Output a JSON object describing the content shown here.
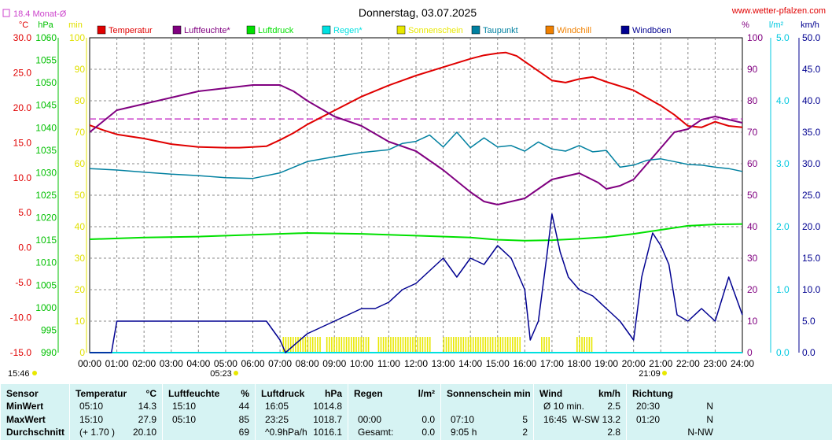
{
  "header": {
    "title": "Donnerstag, 03.07.2025",
    "site": "www.wetter-pfalzen.com",
    "monthly_avg_label": "18.4 Monat-Ø",
    "sunrise": "05:23",
    "sunset": "21:09",
    "current_time": "15:46"
  },
  "colors": {
    "temperature": "#e00000",
    "humidity": "#800080",
    "pressure": "#00e000",
    "rain": "#00e0e0",
    "sunshine": "#e8e800",
    "dewpoint": "#0080a0",
    "windchill": "#f08000",
    "gust": "#000090",
    "monthly_avg": "#cc44cc"
  },
  "chart_data": {
    "type": "line",
    "title": "Donnerstag, 03.07.2025",
    "x_ticks": [
      "00:00",
      "01:00",
      "02:00",
      "03:00",
      "04:00",
      "05:00",
      "06:00",
      "07:00",
      "08:00",
      "09:00",
      "10:00",
      "11:00",
      "12:00",
      "13:00",
      "14:00",
      "15:00",
      "16:00",
      "17:00",
      "18:00",
      "19:00",
      "20:00",
      "21:00",
      "22:00",
      "23:00",
      "24:00"
    ],
    "axes": [
      {
        "unit": "°C",
        "ticks": [
          "30.0",
          "25.0",
          "20.0",
          "15.0",
          "10.0",
          "5.0",
          "0.0",
          "-5.0",
          "-10.0",
          "-15.0"
        ],
        "range": [
          -15,
          30
        ]
      },
      {
        "unit": "hPa",
        "ticks": [
          "1060",
          "1055",
          "1050",
          "1045",
          "1040",
          "1035",
          "1030",
          "1025",
          "1020",
          "1015",
          "1010",
          "1005",
          "1000",
          "995",
          "990"
        ],
        "range": [
          990,
          1060
        ]
      },
      {
        "unit": "min",
        "ticks": [
          "100",
          "90",
          "80",
          "70",
          "60",
          "50",
          "40",
          "30",
          "20",
          "10",
          "0"
        ],
        "range": [
          0,
          100
        ]
      },
      {
        "unit": "%",
        "ticks": [
          "100",
          "90",
          "80",
          "70",
          "60",
          "50",
          "40",
          "30",
          "20",
          "10",
          "0"
        ],
        "range": [
          0,
          100
        ]
      },
      {
        "unit": "l/m²",
        "ticks": [
          "5.0",
          "4.0",
          "3.0",
          "2.0",
          "1.0",
          "0.0"
        ],
        "range": [
          0,
          5
        ]
      },
      {
        "unit": "km/h",
        "ticks": [
          "50.0",
          "45.0",
          "40.0",
          "35.0",
          "30.0",
          "25.0",
          "20.0",
          "15.0",
          "10.0",
          "5.0",
          "0.0"
        ],
        "range": [
          0,
          50
        ]
      }
    ],
    "legend": [
      {
        "name": "Temperatur",
        "key": "temperature"
      },
      {
        "name": "Luftfeuchte*",
        "key": "humidity"
      },
      {
        "name": "Luftdruck",
        "key": "pressure"
      },
      {
        "name": "Regen*",
        "key": "rain"
      },
      {
        "name": "Sonnenschein",
        "key": "sunshine"
      },
      {
        "name": "Taupunkt",
        "key": "dewpoint"
      },
      {
        "name": "Windchill",
        "key": "windchill"
      },
      {
        "name": "Windböen",
        "key": "gust"
      }
    ],
    "monthly_avg_temp": 18.4,
    "series": [
      {
        "name": "Temperatur",
        "key": "temperature",
        "axis": "°C",
        "x": [
          0,
          0.5,
          1,
          2,
          3,
          4,
          5,
          5.5,
          6,
          6.5,
          7,
          7.5,
          8,
          9,
          10,
          11,
          12,
          13,
          14,
          14.5,
          15,
          15.3,
          15.7,
          16,
          17,
          17.5,
          18,
          18.5,
          19,
          20,
          21,
          21.5,
          22,
          22.5,
          23,
          23.5,
          24
        ],
        "y": [
          17.5,
          16.8,
          16.2,
          15.6,
          14.8,
          14.4,
          14.3,
          14.3,
          14.4,
          14.5,
          15.4,
          16.4,
          17.6,
          19.6,
          21.6,
          23.2,
          24.6,
          25.8,
          27.0,
          27.5,
          27.8,
          27.9,
          27.4,
          26.6,
          23.9,
          23.6,
          24.1,
          24.4,
          23.7,
          22.5,
          20.3,
          19.0,
          17.4,
          17.2,
          18.0,
          17.4,
          17.2
        ]
      },
      {
        "name": "Luftfeuchte*",
        "key": "humidity",
        "axis": "%",
        "x": [
          0,
          1,
          2,
          3,
          4,
          5,
          6,
          7,
          7.5,
          8,
          9,
          10,
          11,
          12,
          13,
          14,
          14.5,
          15,
          15.5,
          16,
          17,
          18,
          18.7,
          19,
          19.5,
          20,
          21,
          21.5,
          22,
          22.5,
          23,
          23.5,
          24
        ],
        "y": [
          70,
          77,
          79,
          81,
          83,
          84,
          85,
          85,
          83,
          80,
          75,
          72,
          67,
          64,
          58,
          51,
          48,
          47,
          48,
          49,
          55,
          57,
          54,
          52,
          53,
          55,
          65,
          70,
          71,
          74,
          75,
          74,
          73
        ]
      },
      {
        "name": "Luftdruck",
        "key": "pressure",
        "axis": "hPa",
        "x": [
          0,
          2,
          4,
          6,
          8,
          10,
          12,
          14,
          15,
          16,
          17,
          18,
          19,
          20,
          21,
          22,
          23,
          24
        ],
        "y": [
          1015.2,
          1015.6,
          1015.8,
          1016.2,
          1016.6,
          1016.4,
          1016.0,
          1015.6,
          1015.1,
          1014.9,
          1015.0,
          1015.3,
          1015.7,
          1016.4,
          1017.3,
          1018.2,
          1018.5,
          1018.6
        ]
      },
      {
        "name": "Regen*",
        "key": "rain",
        "axis": "l/m²",
        "x": [
          0,
          24
        ],
        "y": [
          0,
          0
        ]
      },
      {
        "name": "Taupunkt",
        "key": "dewpoint",
        "axis": "°C",
        "x": [
          0,
          1,
          2,
          3,
          4,
          5,
          6,
          7,
          8,
          9,
          10,
          11,
          11.5,
          12,
          12.5,
          13,
          13.5,
          14,
          14.5,
          15,
          15.5,
          16,
          16.5,
          17,
          17.5,
          18,
          18.5,
          19,
          19.5,
          20,
          20.5,
          21,
          21.5,
          22,
          22.5,
          23,
          23.5,
          24
        ],
        "y": [
          11.3,
          11.1,
          10.8,
          10.5,
          10.3,
          10.0,
          9.9,
          10.7,
          12.3,
          13.0,
          13.6,
          14.0,
          14.9,
          15.2,
          16.1,
          14.4,
          16.5,
          14.3,
          15.7,
          14.4,
          14.6,
          13.8,
          15.1,
          14.1,
          13.8,
          14.6,
          13.7,
          13.9,
          11.5,
          11.8,
          12.5,
          12.7,
          12.3,
          11.9,
          11.8,
          11.5,
          11.3,
          10.9
        ]
      },
      {
        "name": "Windböen",
        "key": "gust",
        "axis": "km/h",
        "x": [
          0,
          0.8,
          1,
          2,
          3,
          4,
          5,
          5.5,
          6,
          6.5,
          7,
          7.2,
          8,
          9,
          10,
          10.5,
          11,
          11.5,
          12,
          12.5,
          13,
          13.5,
          14,
          14.5,
          15,
          15.5,
          16,
          16.2,
          16.5,
          16.8,
          17,
          17.3,
          17.6,
          18,
          18.5,
          19,
          19.5,
          20,
          20.3,
          20.7,
          21,
          21.3,
          21.6,
          22,
          22.5,
          23,
          23.5,
          24
        ],
        "y": [
          0,
          0,
          5,
          5,
          5,
          5,
          5,
          5,
          5,
          5,
          2,
          0,
          3,
          5,
          7,
          7,
          8,
          10,
          11,
          13,
          15,
          12,
          15,
          14,
          17,
          15,
          10,
          2,
          5,
          15,
          22,
          16,
          12,
          10,
          9,
          7,
          5,
          2,
          12,
          19,
          17,
          14,
          6,
          5,
          7,
          5,
          12,
          6
        ]
      }
    ],
    "sunshine_intervals": [
      [
        7.1,
        8.5
      ],
      [
        8.7,
        10.3
      ],
      [
        10.6,
        12.5
      ],
      [
        13.0,
        14.8
      ],
      [
        14.9,
        15.8
      ],
      [
        16.6,
        16.9
      ],
      [
        17.9,
        18.5
      ]
    ]
  },
  "stats": {
    "headers": [
      {
        "label": "Sensor",
        "unit": ""
      },
      {
        "label": "Temperatur",
        "unit": "°C"
      },
      {
        "label": "Luftfeuchte",
        "unit": "%"
      },
      {
        "label": "Luftdruck",
        "unit": "hPa"
      },
      {
        "label": "Regen",
        "unit": "l/m²"
      },
      {
        "label": "Sonnenschein min",
        "unit": ""
      },
      {
        "label": "Wind",
        "unit": "km/h"
      },
      {
        "label": "Richtung",
        "unit": ""
      }
    ],
    "rows": [
      {
        "label": "MinWert",
        "cells": [
          [
            "05:10",
            "14.3"
          ],
          [
            "15:10",
            "44"
          ],
          [
            "16:05",
            "1014.8"
          ],
          [
            "",
            ""
          ],
          [
            "",
            ""
          ],
          [
            "Ø 10 min.",
            "2.5"
          ],
          [
            "20:30",
            "N"
          ]
        ]
      },
      {
        "label": "MaxWert",
        "cells": [
          [
            "15:10",
            "27.9"
          ],
          [
            "05:10",
            "85"
          ],
          [
            "23:25",
            "1018.7"
          ],
          [
            "00:00",
            "0.0"
          ],
          [
            "07:10",
            "5"
          ],
          [
            "16:45",
            "W-SW 13.2"
          ],
          [
            "01:20",
            "N"
          ]
        ]
      },
      {
        "label": "Durchschnitt",
        "cells": [
          [
            "(+ 1.70 )",
            "20.10"
          ],
          [
            "",
            "69"
          ],
          [
            "^0.9hPa/h",
            "1016.1"
          ],
          [
            "Gesamt:",
            "0.0"
          ],
          [
            "9:05 h",
            "2"
          ],
          [
            "",
            "2.8"
          ],
          [
            "",
            "N-NW"
          ]
        ]
      }
    ]
  }
}
